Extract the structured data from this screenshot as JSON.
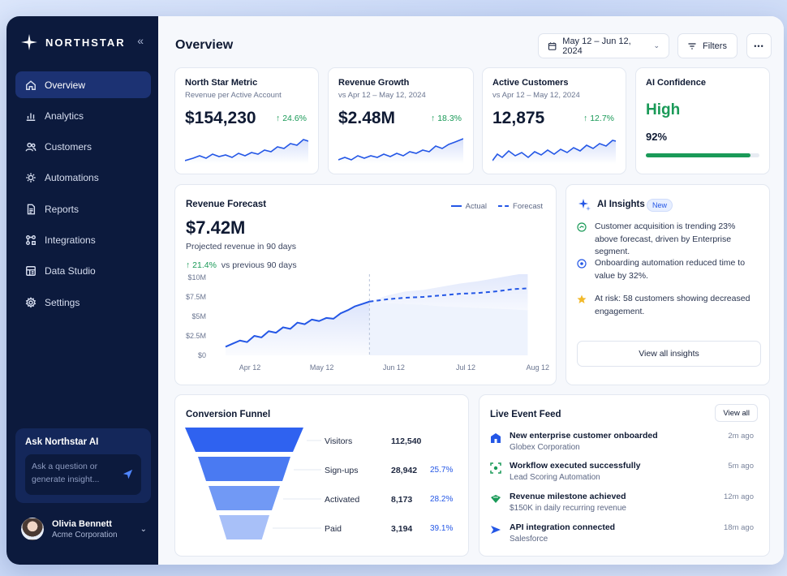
{
  "brand": {
    "name": "NORTHSTAR",
    "collapse_icon": "chevrons-left-icon"
  },
  "nav": [
    {
      "label": "Overview",
      "icon": "home-icon",
      "active": true
    },
    {
      "label": "Analytics",
      "icon": "bar-chart-icon",
      "active": false
    },
    {
      "label": "Customers",
      "icon": "users-icon",
      "active": false
    },
    {
      "label": "Automations",
      "icon": "gear-spark-icon",
      "active": false
    },
    {
      "label": "Reports",
      "icon": "document-icon",
      "active": false
    },
    {
      "label": "Integrations",
      "icon": "puzzle-icon",
      "active": false
    },
    {
      "label": "Data Studio",
      "icon": "grid-icon",
      "active": false
    },
    {
      "label": "Settings",
      "icon": "settings-icon",
      "active": false
    }
  ],
  "ask": {
    "title": "Ask Northstar AI",
    "placeholder": "Ask a question or generate insight..."
  },
  "user": {
    "name": "Olivia Bennett",
    "org": "Acme Corporation"
  },
  "header": {
    "title": "Overview",
    "date_range": "May 12 – Jun 12, 2024",
    "filters_label": "Filters",
    "more_label": "•••"
  },
  "kpis": [
    {
      "title": "North Star Metric",
      "subtitle": "Revenue per Active Account",
      "value": "$154,230",
      "delta": "24.6%"
    },
    {
      "title": "Revenue Growth",
      "subtitle": "vs Apr 12 – May 12, 2024",
      "value": "$2.48M",
      "delta": "18.3%"
    },
    {
      "title": "Active Customers",
      "subtitle": "vs Apr 12 – May 12, 2024",
      "value": "12,875",
      "delta": "12.7%"
    }
  ],
  "confidence": {
    "title": "AI Confidence",
    "level": "High",
    "percent_label": "92%",
    "percent": 92,
    "color": "#1a9a58"
  },
  "forecast": {
    "title": "Revenue Forecast",
    "value": "$7.42M",
    "subtitle": "Projected revenue in 90 days",
    "delta": "21.4%",
    "delta_suffix": "vs previous 90 days",
    "legend_actual": "Actual",
    "legend_forecast": "Forecast"
  },
  "chart_data": {
    "type": "line",
    "title": "Revenue Forecast",
    "xlabel": "",
    "ylabel": "",
    "x_ticks": [
      "Apr 12",
      "May 12",
      "Jun 12",
      "Jul 12",
      "Aug 12"
    ],
    "y_ticks": [
      "$0",
      "$2.5M",
      "$5M",
      "$7.5M",
      "$10M"
    ],
    "ylim": [
      0,
      10
    ],
    "y_unit": "M",
    "series": [
      {
        "name": "Actual",
        "style": "solid",
        "x": [
          0,
          0.1,
          0.2,
          0.3,
          0.4,
          0.5,
          0.6,
          0.7,
          0.8,
          0.9,
          1.0,
          1.1,
          1.2,
          1.3,
          1.4,
          1.5,
          1.6,
          1.7,
          1.8,
          1.9,
          2.0
        ],
        "values": [
          1.1,
          1.5,
          1.9,
          1.7,
          2.5,
          2.3,
          3.1,
          2.9,
          3.6,
          3.4,
          4.2,
          4.0,
          4.6,
          4.4,
          4.8,
          4.7,
          5.4,
          5.8,
          6.3,
          6.6,
          6.9
        ]
      },
      {
        "name": "Forecast",
        "style": "dashed",
        "x": [
          2.0,
          2.25,
          2.5,
          2.75,
          3.0,
          3.25,
          3.5,
          3.75,
          4.0,
          4.2
        ],
        "values": [
          6.9,
          7.2,
          7.4,
          7.5,
          7.7,
          7.9,
          8.0,
          8.2,
          8.5,
          8.6
        ],
        "band_upper": [
          6.9,
          7.7,
          8.2,
          8.4,
          8.8,
          9.2,
          9.5,
          9.9,
          10.3,
          10.6
        ],
        "band_lower": [
          6.9,
          6.7,
          6.6,
          6.5,
          6.3,
          6.2,
          6.1,
          6.0,
          5.9,
          5.8
        ]
      }
    ],
    "split_x": 2.0,
    "grid": false,
    "legend": "top-right",
    "color": "#2457e6"
  },
  "insights": {
    "title": "AI Insights",
    "badge": "New",
    "items": [
      {
        "icon": "trend-icon",
        "text": "Customer acquisition is trending 23% above forecast, driven by Enterprise segment."
      },
      {
        "icon": "automation-icon",
        "text": "Onboarding automation reduced time to value by 32%."
      },
      {
        "icon": "star-icon",
        "text": "At risk: 58 customers showing decreased engagement."
      }
    ],
    "button": "View all insights"
  },
  "funnel": {
    "title": "Conversion Funnel",
    "stages": [
      {
        "label": "Visitors",
        "value": "112,540",
        "pct": ""
      },
      {
        "label": "Sign-ups",
        "value": "28,942",
        "pct": "25.7%"
      },
      {
        "label": "Activated",
        "value": "8,173",
        "pct": "28.2%"
      },
      {
        "label": "Paid",
        "value": "3,194",
        "pct": "39.1%"
      }
    ],
    "colors": [
      "#2f62f0",
      "#4a7af2",
      "#7199f5",
      "#a8c0f8"
    ]
  },
  "events": {
    "title": "Live Event Feed",
    "button": "View all",
    "items": [
      {
        "icon": "building-icon",
        "title": "New enterprise customer onboarded",
        "sub": "Globex Corporation",
        "time": "2m ago"
      },
      {
        "icon": "workflow-icon",
        "title": "Workflow executed successfully",
        "sub": "Lead Scoring Automation",
        "time": "5m ago"
      },
      {
        "icon": "money-icon",
        "title": "Revenue milestone achieved",
        "sub": "$150K in daily recurring revenue",
        "time": "12m ago"
      },
      {
        "icon": "plug-icon",
        "title": "API integration connected",
        "sub": "Salesforce",
        "time": "18m ago"
      }
    ]
  }
}
